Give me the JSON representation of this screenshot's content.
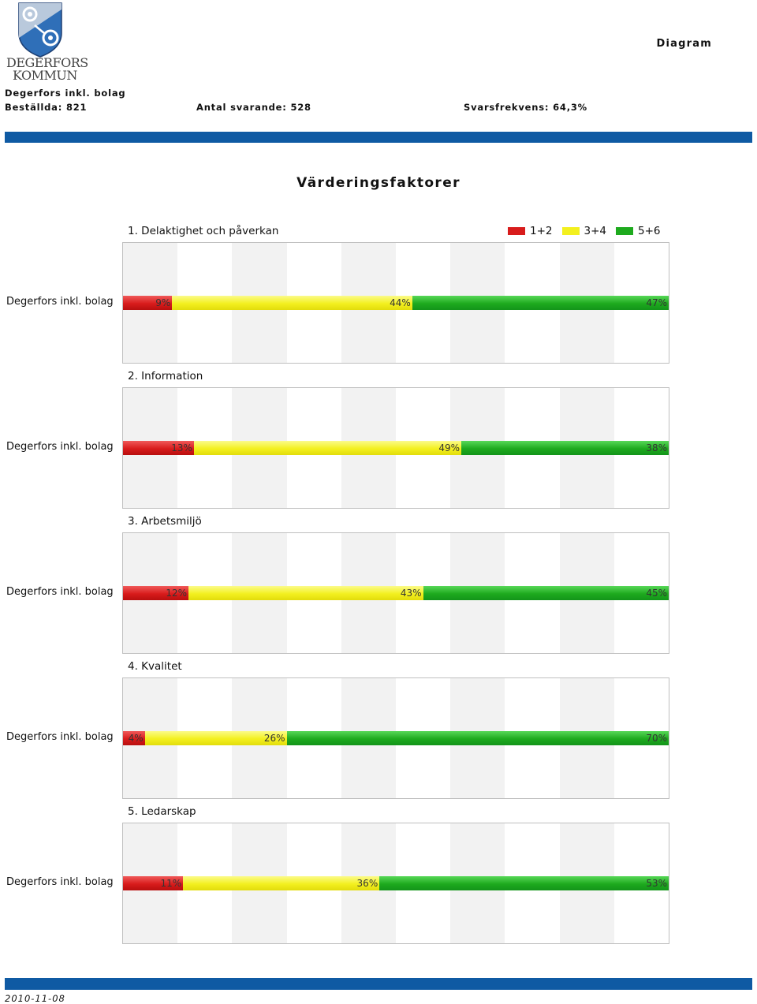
{
  "header": {
    "logo_line1": "DEGERFORS",
    "logo_line2": "KOMMUN",
    "right_label": "Diagram",
    "org": "Degerfors inkl. bolag",
    "ordered": "Beställda: 821",
    "respondents": "Antal svarande: 528",
    "response_rate": "Svarsfrekvens: 64,3%"
  },
  "page_title": "Värderingsfaktorer",
  "colors": {
    "blue_bar": "#0f5aa3",
    "red": "#d81c1c",
    "yellow": "#f3f01f",
    "green": "#1eaa1e"
  },
  "legend": [
    {
      "label": "1+2",
      "color": "#d81c1c"
    },
    {
      "label": "3+4",
      "color": "#f3f01f"
    },
    {
      "label": "5+6",
      "color": "#1eaa1e"
    }
  ],
  "chart_data": [
    {
      "type": "bar",
      "title": "1. Delaktighet och påverkan",
      "categories": [
        "Degerfors inkl. bolag"
      ],
      "series": [
        {
          "name": "1+2",
          "values": [
            9
          ]
        },
        {
          "name": "3+4",
          "values": [
            44
          ]
        },
        {
          "name": "5+6",
          "values": [
            47
          ]
        }
      ],
      "labels": [
        "9%",
        "44%",
        "47%"
      ],
      "xlim": [
        0,
        100
      ]
    },
    {
      "type": "bar",
      "title": "2. Information",
      "categories": [
        "Degerfors inkl. bolag"
      ],
      "series": [
        {
          "name": "1+2",
          "values": [
            13
          ]
        },
        {
          "name": "3+4",
          "values": [
            49
          ]
        },
        {
          "name": "5+6",
          "values": [
            38
          ]
        }
      ],
      "labels": [
        "13%",
        "49%",
        "38%"
      ],
      "xlim": [
        0,
        100
      ]
    },
    {
      "type": "bar",
      "title": "3. Arbetsmiljö",
      "categories": [
        "Degerfors inkl. bolag"
      ],
      "series": [
        {
          "name": "1+2",
          "values": [
            12
          ]
        },
        {
          "name": "3+4",
          "values": [
            43
          ]
        },
        {
          "name": "5+6",
          "values": [
            45
          ]
        }
      ],
      "labels": [
        "12%",
        "43%",
        "45%"
      ],
      "xlim": [
        0,
        100
      ]
    },
    {
      "type": "bar",
      "title": "4. Kvalitet",
      "categories": [
        "Degerfors inkl. bolag"
      ],
      "series": [
        {
          "name": "1+2",
          "values": [
            4
          ]
        },
        {
          "name": "3+4",
          "values": [
            26
          ]
        },
        {
          "name": "5+6",
          "values": [
            70
          ]
        }
      ],
      "labels": [
        "4%",
        "26%",
        "70%"
      ],
      "xlim": [
        0,
        100
      ]
    },
    {
      "type": "bar",
      "title": "5. Ledarskap",
      "categories": [
        "Degerfors inkl. bolag"
      ],
      "series": [
        {
          "name": "1+2",
          "values": [
            11
          ]
        },
        {
          "name": "3+4",
          "values": [
            36
          ]
        },
        {
          "name": "5+6",
          "values": [
            53
          ]
        }
      ],
      "labels": [
        "11%",
        "36%",
        "53%"
      ],
      "xlim": [
        0,
        100
      ]
    }
  ],
  "footer": {
    "date": "2010-11-08"
  }
}
